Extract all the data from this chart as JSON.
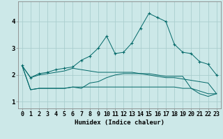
{
  "xlabel": "Humidex (Indice chaleur)",
  "bg_color": "#cce8e8",
  "grid_color": "#aacece",
  "line_color": "#006868",
  "xlim": [
    -0.5,
    23.5
  ],
  "ylim": [
    0.75,
    4.75
  ],
  "xticks": [
    0,
    1,
    2,
    3,
    4,
    5,
    6,
    7,
    8,
    9,
    10,
    11,
    12,
    13,
    14,
    15,
    16,
    17,
    18,
    19,
    20,
    21,
    22,
    23
  ],
  "yticks": [
    1,
    2,
    3,
    4
  ],
  "line1": [
    2.35,
    1.9,
    2.05,
    2.1,
    2.2,
    2.25,
    2.3,
    2.55,
    2.7,
    3.0,
    3.45,
    2.8,
    2.85,
    3.2,
    3.75,
    4.3,
    4.15,
    4.0,
    3.15,
    2.85,
    2.8,
    2.5,
    2.4,
    2.0
  ],
  "line1_markers": [
    0,
    1,
    2,
    3,
    4,
    5,
    6,
    7,
    8,
    9,
    10,
    11,
    12,
    13,
    14,
    15,
    16,
    17,
    18,
    19,
    20,
    21,
    22,
    23
  ],
  "line2": [
    2.35,
    1.9,
    2.0,
    2.05,
    2.1,
    2.15,
    2.25,
    2.2,
    2.15,
    2.1,
    2.1,
    2.1,
    2.1,
    2.1,
    2.05,
    2.0,
    1.95,
    1.9,
    1.9,
    1.85,
    1.8,
    1.75,
    1.7,
    1.3
  ],
  "line3": [
    2.35,
    1.45,
    1.5,
    1.5,
    1.5,
    1.5,
    1.55,
    1.55,
    1.55,
    1.55,
    1.55,
    1.55,
    1.55,
    1.55,
    1.55,
    1.55,
    1.55,
    1.55,
    1.55,
    1.5,
    1.5,
    1.4,
    1.3,
    1.3
  ],
  "line4": [
    2.35,
    1.45,
    1.5,
    1.5,
    1.5,
    1.5,
    1.55,
    1.5,
    1.7,
    1.75,
    1.9,
    2.0,
    2.05,
    2.05,
    2.05,
    2.05,
    2.0,
    1.95,
    1.95,
    1.95,
    1.5,
    1.3,
    1.2,
    1.3
  ],
  "xlabel_fontsize": 6.5,
  "tick_fontsize": 6,
  "marker_size": 3.5
}
